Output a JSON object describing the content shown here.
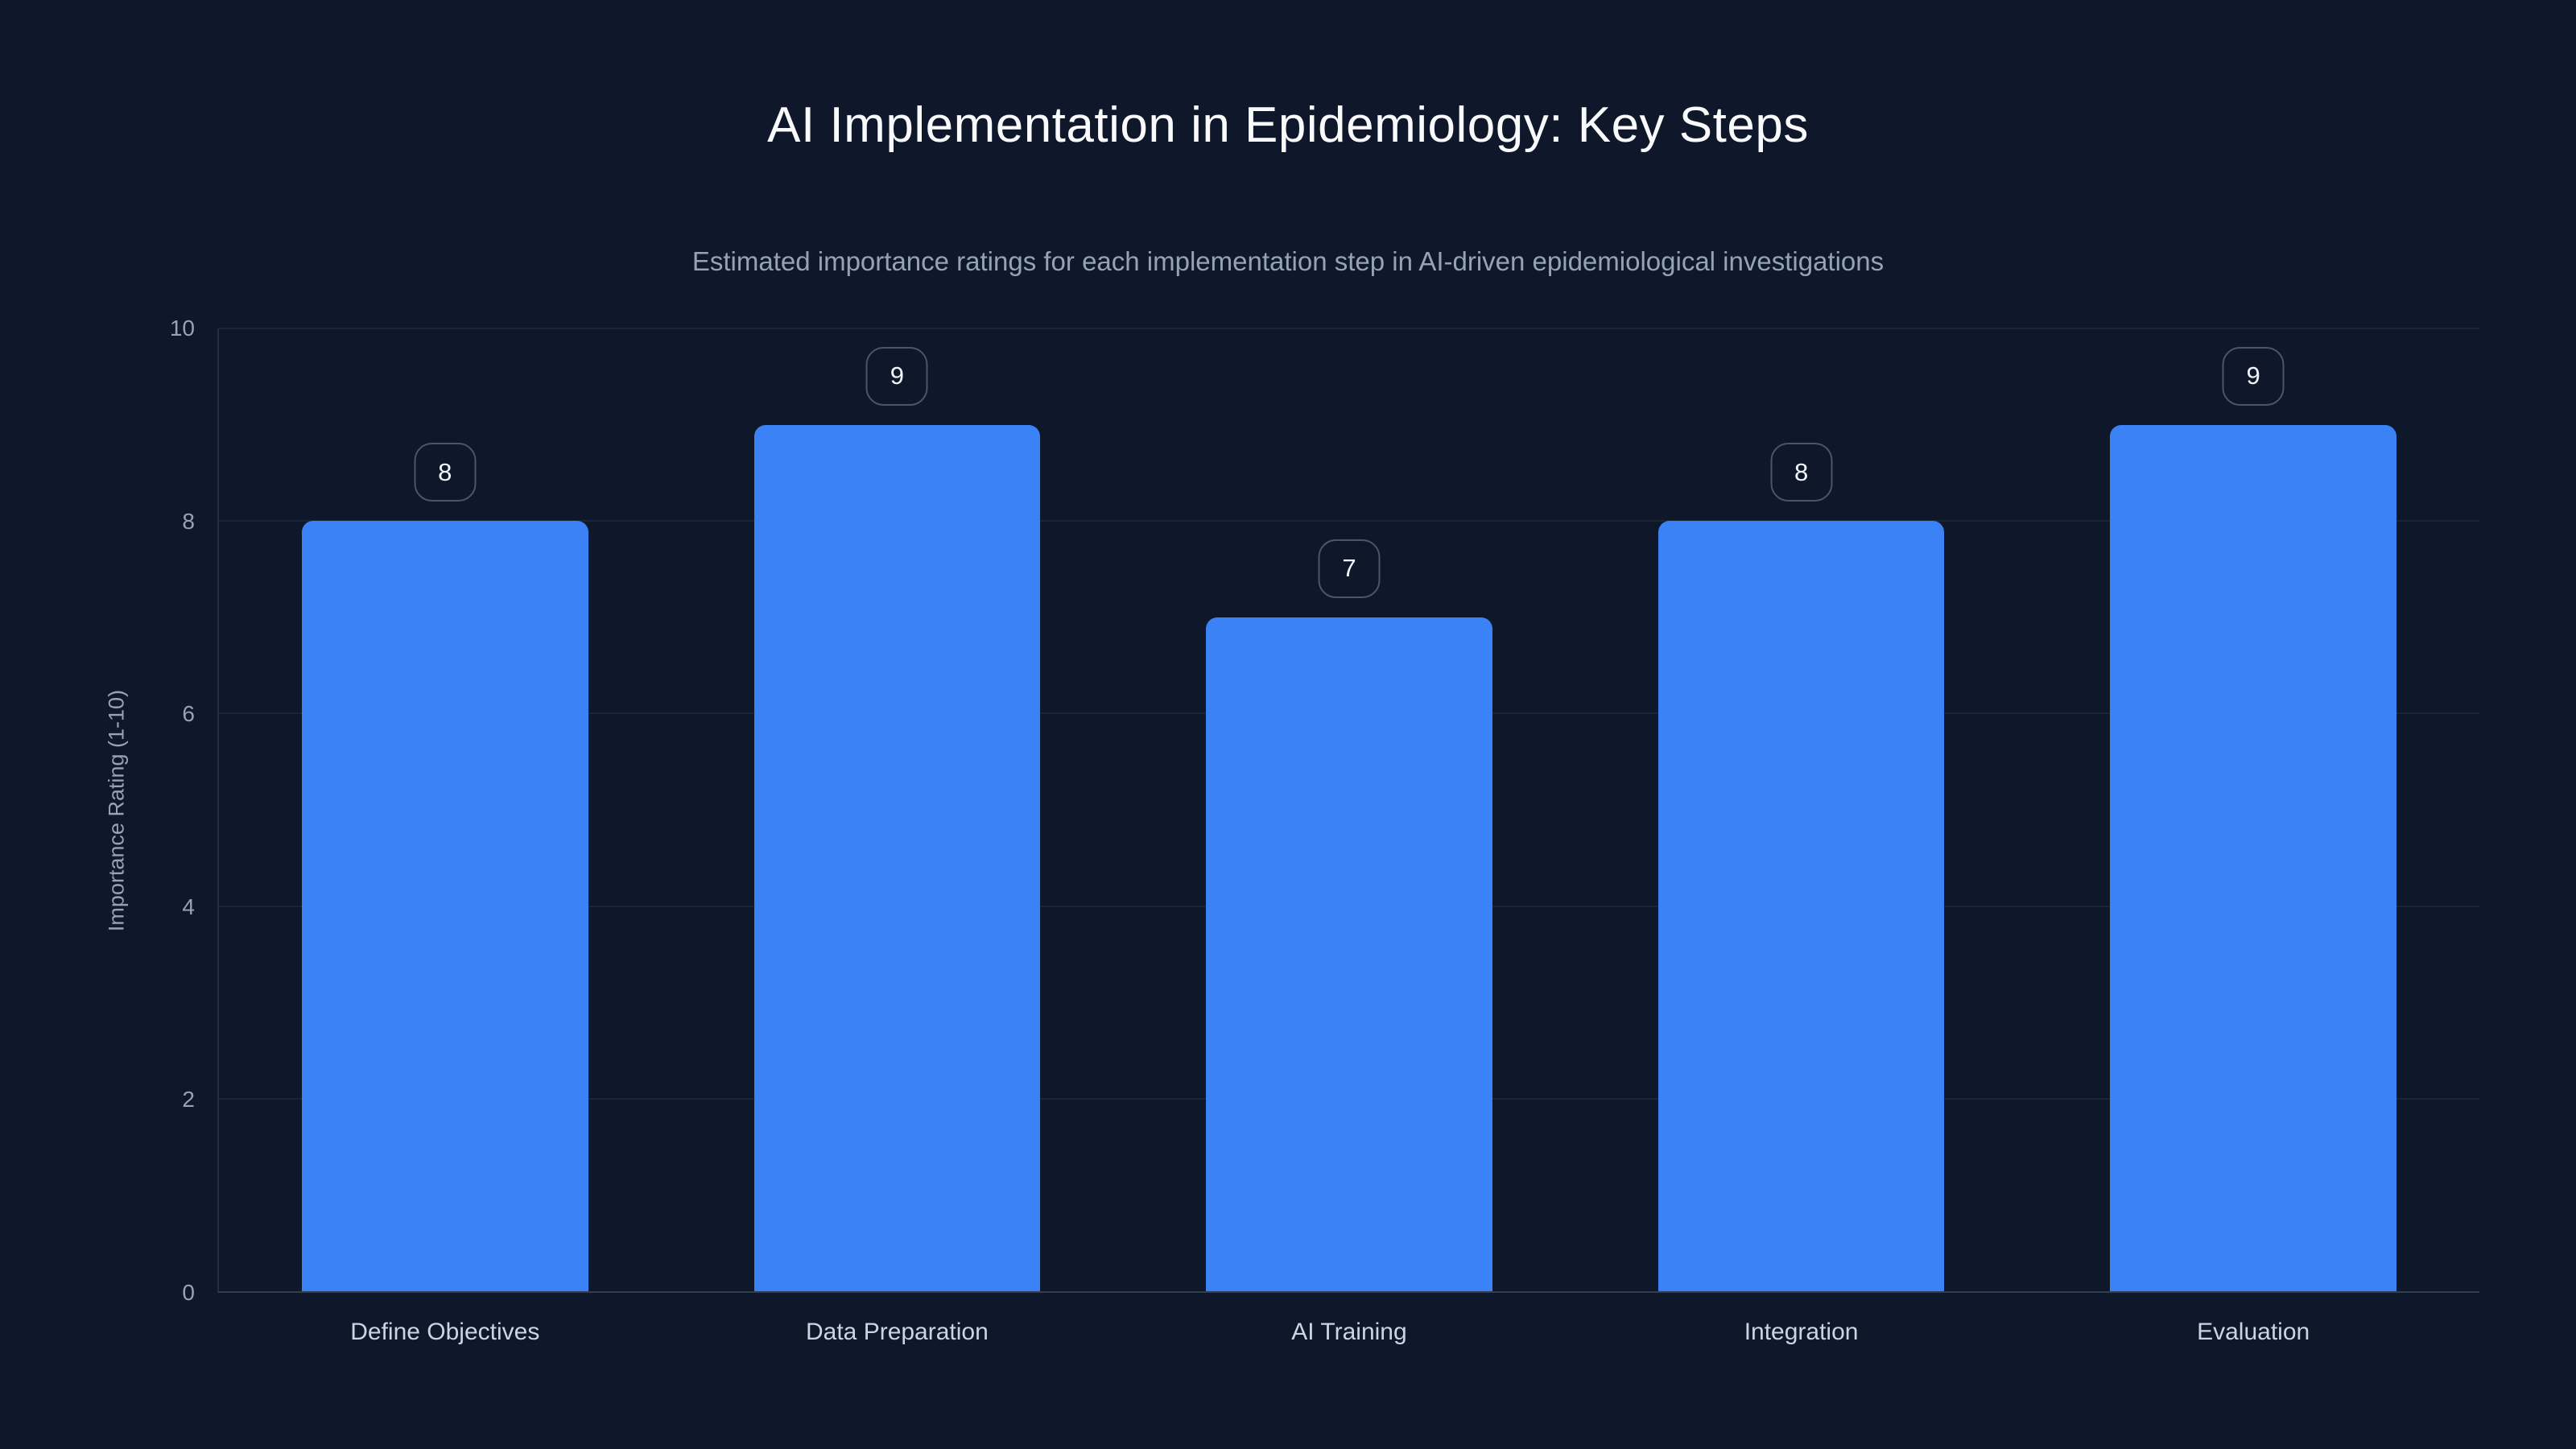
{
  "chart_data": {
    "type": "bar",
    "title": "AI Implementation in Epidemiology: Key Steps",
    "subtitle": "Estimated importance ratings for each implementation step in AI-driven epidemiological investigations",
    "categories": [
      "Define Objectives",
      "Data Preparation",
      "AI Training",
      "Integration",
      "Evaluation"
    ],
    "values": [
      8,
      9,
      7,
      8,
      9
    ],
    "value_labels": [
      "8",
      "9",
      "7",
      "8",
      "9"
    ],
    "xlabel": "",
    "ylabel": "Importance Rating (1-10)",
    "ylim": [
      0,
      10
    ],
    "yticks": [
      0,
      2,
      4,
      6,
      8,
      10
    ],
    "grid": true,
    "legend": false,
    "colors": {
      "background": "#0f172a",
      "bar": "#3b82f6",
      "title_text": "#f8fafc",
      "subtitle_text": "#94a3b8",
      "tick_text": "#94a3b8",
      "category_text": "#cbd5e1",
      "badge_text": "#f1f5f9",
      "badge_border": "rgba(148,163,184,0.45)",
      "gridline": "rgba(148,163,184,0.10)"
    }
  }
}
